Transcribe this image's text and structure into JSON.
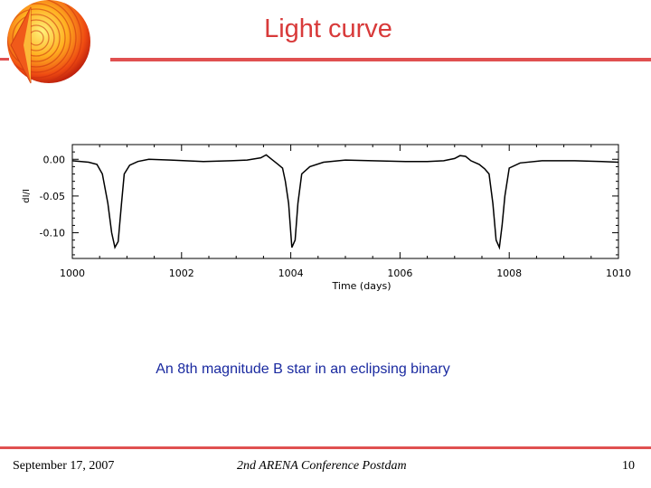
{
  "slide": {
    "title": "Light curve",
    "caption": "An 8th magnitude B star in an eclipsing binary"
  },
  "footer": {
    "date": "September 17, 2007",
    "conference": "2nd ARENA Conference Postdam",
    "page": "10"
  },
  "colors": {
    "accent": "#e05050",
    "title": "#d83a3a",
    "caption": "#1a2aa0"
  },
  "chart_data": {
    "type": "line",
    "xlabel": "Time (days)",
    "ylabel": "dI/I",
    "xlim": [
      1000,
      1010
    ],
    "ylim": [
      -0.135,
      0.02
    ],
    "xticks": [
      "1000",
      "1002",
      "1004",
      "1006",
      "1008",
      "1010"
    ],
    "yticks": [
      "0.00",
      "-0.05",
      "-0.10"
    ],
    "ytick_values": [
      0.0,
      -0.05,
      -0.1
    ],
    "grid": false,
    "series": [
      {
        "x": [
          1000.0,
          1000.3,
          1000.45,
          1000.55,
          1000.65,
          1000.72,
          1000.78,
          1000.84,
          1000.9,
          1000.95,
          1001.05,
          1001.2,
          1001.4,
          1001.8,
          1002.4,
          1002.9,
          1003.2,
          1003.45,
          1003.55,
          1003.65,
          1003.75,
          1003.85,
          1003.9,
          1003.96,
          1004.02,
          1004.08,
          1004.13,
          1004.2,
          1004.35,
          1004.6,
          1005.0,
          1005.5,
          1006.1,
          1006.5,
          1006.8,
          1007.0,
          1007.1,
          1007.2,
          1007.3,
          1007.45,
          1007.55,
          1007.63,
          1007.7,
          1007.76,
          1007.82,
          1007.87,
          1007.92,
          1008.0,
          1008.2,
          1008.6,
          1009.2,
          1009.7,
          1010.0
        ],
        "y": [
          -0.002,
          -0.004,
          -0.007,
          -0.02,
          -0.06,
          -0.1,
          -0.12,
          -0.112,
          -0.06,
          -0.02,
          -0.008,
          -0.003,
          0.0,
          -0.001,
          -0.003,
          -0.002,
          -0.001,
          0.002,
          0.006,
          0.0,
          -0.006,
          -0.012,
          -0.03,
          -0.06,
          -0.12,
          -0.11,
          -0.06,
          -0.02,
          -0.01,
          -0.004,
          -0.001,
          -0.002,
          -0.003,
          -0.003,
          -0.002,
          0.001,
          0.005,
          0.004,
          -0.002,
          -0.007,
          -0.013,
          -0.02,
          -0.06,
          -0.11,
          -0.12,
          -0.09,
          -0.05,
          -0.012,
          -0.005,
          -0.002,
          -0.002,
          -0.003,
          -0.004
        ]
      }
    ]
  }
}
